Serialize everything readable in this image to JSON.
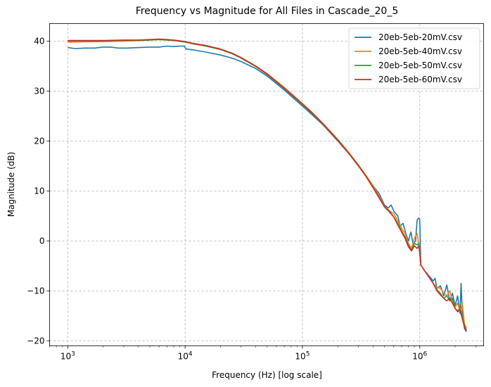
{
  "chart_data": {
    "type": "line",
    "title": "Frequency vs Magnitude for All Files in Cascade_20_5",
    "xlabel": "Frequency (Hz) [log scale]",
    "ylabel": "Magnitude (dB)",
    "xscale": "log",
    "xlim": [
      700,
      3500000
    ],
    "ylim": [
      -21,
      43.5
    ],
    "grid": true,
    "legend_position": "top-right",
    "x_ticks": [
      {
        "value": 1000,
        "base": "10",
        "exp": "3"
      },
      {
        "value": 10000,
        "base": "10",
        "exp": "4"
      },
      {
        "value": 100000,
        "base": "10",
        "exp": "5"
      },
      {
        "value": 1000000,
        "base": "10",
        "exp": "6"
      }
    ],
    "y_ticks": [
      {
        "value": -20,
        "label": "−20"
      },
      {
        "value": -10,
        "label": "−10"
      },
      {
        "value": 0,
        "label": "0"
      },
      {
        "value": 10,
        "label": "10"
      },
      {
        "value": 20,
        "label": "20"
      },
      {
        "value": 30,
        "label": "30"
      },
      {
        "value": 40,
        "label": "40"
      }
    ],
    "series": [
      {
        "name": "20eb-5eb-20mV.csv",
        "color": "#1f77b4",
        "points": [
          [
            1000,
            38.7
          ],
          [
            1150,
            38.5
          ],
          [
            1400,
            38.6
          ],
          [
            1700,
            38.6
          ],
          [
            2000,
            38.8
          ],
          [
            2300,
            38.8
          ],
          [
            2700,
            38.6
          ],
          [
            3200,
            38.6
          ],
          [
            4000,
            38.7
          ],
          [
            5000,
            38.8
          ],
          [
            6000,
            38.8
          ],
          [
            7000,
            39.0
          ],
          [
            8000,
            38.9
          ],
          [
            9000,
            39.0
          ],
          [
            9800,
            39.0
          ],
          [
            10200,
            38.4
          ],
          [
            12000,
            38.2
          ],
          [
            15000,
            37.8
          ],
          [
            20000,
            37.2
          ],
          [
            25000,
            36.6
          ],
          [
            30000,
            35.9
          ],
          [
            40000,
            34.5
          ],
          [
            50000,
            33.0
          ],
          [
            60000,
            31.5
          ],
          [
            70000,
            30.2
          ],
          [
            80000,
            29.0
          ],
          [
            100000,
            27.0
          ],
          [
            120000,
            25.3
          ],
          [
            150000,
            23.2
          ],
          [
            200000,
            20.0
          ],
          [
            250000,
            17.4
          ],
          [
            300000,
            15.0
          ],
          [
            350000,
            13.0
          ],
          [
            400000,
            11.0
          ],
          [
            450000,
            9.5
          ],
          [
            500000,
            7.2
          ],
          [
            540000,
            6.6
          ],
          [
            570000,
            7.2
          ],
          [
            600000,
            6.0
          ],
          [
            650000,
            5.0
          ],
          [
            680000,
            3.0
          ],
          [
            720000,
            3.5
          ],
          [
            760000,
            1.5
          ],
          [
            800000,
            0.0
          ],
          [
            840000,
            1.8
          ],
          [
            880000,
            -0.8
          ],
          [
            920000,
            0.0
          ],
          [
            950000,
            4.2
          ],
          [
            980000,
            4.6
          ],
          [
            1000000,
            4.3
          ],
          [
            1020000,
            -4.8
          ],
          [
            1100000,
            -6.0
          ],
          [
            1200000,
            -7.0
          ],
          [
            1300000,
            -8.0
          ],
          [
            1350000,
            -7.5
          ],
          [
            1400000,
            -9.5
          ],
          [
            1500000,
            -9.0
          ],
          [
            1600000,
            -11.0
          ],
          [
            1700000,
            -8.8
          ],
          [
            1800000,
            -12.0
          ],
          [
            1900000,
            -10.5
          ],
          [
            2000000,
            -13.0
          ],
          [
            2100000,
            -11.0
          ],
          [
            2200000,
            -14.5
          ],
          [
            2250000,
            -8.5
          ],
          [
            2300000,
            -14.0
          ],
          [
            2400000,
            -17.5
          ],
          [
            2500000,
            -18.2
          ]
        ]
      },
      {
        "name": "20eb-5eb-40mV.csv",
        "color": "#ff7f0e",
        "points": [
          [
            1000,
            39.8
          ],
          [
            2000,
            39.9
          ],
          [
            3000,
            40.0
          ],
          [
            4000,
            40.1
          ],
          [
            5000,
            40.2
          ],
          [
            6000,
            40.3
          ],
          [
            7000,
            40.2
          ],
          [
            8000,
            40.1
          ],
          [
            10000,
            39.8
          ],
          [
            12000,
            39.4
          ],
          [
            15000,
            39.0
          ],
          [
            20000,
            38.3
          ],
          [
            25000,
            37.5
          ],
          [
            30000,
            36.7
          ],
          [
            40000,
            35.0
          ],
          [
            50000,
            33.5
          ],
          [
            60000,
            32.0
          ],
          [
            70000,
            30.7
          ],
          [
            80000,
            29.5
          ],
          [
            100000,
            27.5
          ],
          [
            120000,
            25.8
          ],
          [
            150000,
            23.5
          ],
          [
            200000,
            20.3
          ],
          [
            250000,
            17.6
          ],
          [
            300000,
            15.2
          ],
          [
            350000,
            13.0
          ],
          [
            400000,
            11.0
          ],
          [
            450000,
            9.0
          ],
          [
            500000,
            7.0
          ],
          [
            550000,
            6.0
          ],
          [
            600000,
            5.5
          ],
          [
            650000,
            4.0
          ],
          [
            700000,
            2.5
          ],
          [
            750000,
            1.5
          ],
          [
            800000,
            -0.5
          ],
          [
            850000,
            -1.5
          ],
          [
            900000,
            0.5
          ],
          [
            950000,
            1.5
          ],
          [
            980000,
            -0.8
          ],
          [
            1000000,
            -1.5
          ],
          [
            1020000,
            -4.8
          ],
          [
            1100000,
            -6.0
          ],
          [
            1200000,
            -7.2
          ],
          [
            1300000,
            -8.5
          ],
          [
            1400000,
            -9.3
          ],
          [
            1500000,
            -9.5
          ],
          [
            1600000,
            -10.5
          ],
          [
            1700000,
            -11.0
          ],
          [
            1800000,
            -10.0
          ],
          [
            1900000,
            -12.0
          ],
          [
            2000000,
            -13.2
          ],
          [
            2100000,
            -12.5
          ],
          [
            2200000,
            -14.0
          ],
          [
            2300000,
            -12.5
          ],
          [
            2400000,
            -16.5
          ],
          [
            2500000,
            -17.5
          ]
        ]
      },
      {
        "name": "20eb-5eb-50mV.csv",
        "color": "#2ca02c",
        "points": [
          [
            1000,
            40.0
          ],
          [
            2000,
            40.0
          ],
          [
            3000,
            40.1
          ],
          [
            4000,
            40.1
          ],
          [
            5000,
            40.2
          ],
          [
            6000,
            40.3
          ],
          [
            7000,
            40.2
          ],
          [
            8000,
            40.1
          ],
          [
            10000,
            39.8
          ],
          [
            12000,
            39.4
          ],
          [
            15000,
            39.0
          ],
          [
            20000,
            38.3
          ],
          [
            25000,
            37.5
          ],
          [
            30000,
            36.6
          ],
          [
            40000,
            34.9
          ],
          [
            50000,
            33.3
          ],
          [
            60000,
            31.8
          ],
          [
            70000,
            30.5
          ],
          [
            80000,
            29.3
          ],
          [
            100000,
            27.3
          ],
          [
            120000,
            25.6
          ],
          [
            150000,
            23.3
          ],
          [
            200000,
            20.1
          ],
          [
            250000,
            17.4
          ],
          [
            300000,
            15.0
          ],
          [
            350000,
            12.8
          ],
          [
            400000,
            10.6
          ],
          [
            450000,
            8.6
          ],
          [
            500000,
            6.8
          ],
          [
            550000,
            5.8
          ],
          [
            600000,
            4.8
          ],
          [
            650000,
            3.5
          ],
          [
            700000,
            2.0
          ],
          [
            750000,
            0.8
          ],
          [
            800000,
            -0.8
          ],
          [
            850000,
            -1.8
          ],
          [
            900000,
            -0.5
          ],
          [
            950000,
            -0.8
          ],
          [
            980000,
            -0.5
          ],
          [
            1000000,
            -2.0
          ],
          [
            1020000,
            -4.8
          ],
          [
            1100000,
            -6.0
          ],
          [
            1200000,
            -7.2
          ],
          [
            1300000,
            -8.5
          ],
          [
            1400000,
            -9.8
          ],
          [
            1500000,
            -10.5
          ],
          [
            1600000,
            -11.5
          ],
          [
            1700000,
            -11.0
          ],
          [
            1800000,
            -12.0
          ],
          [
            1900000,
            -11.5
          ],
          [
            2000000,
            -13.5
          ],
          [
            2100000,
            -14.0
          ],
          [
            2200000,
            -13.5
          ],
          [
            2300000,
            -15.0
          ],
          [
            2400000,
            -17.0
          ],
          [
            2500000,
            -17.8
          ]
        ]
      },
      {
        "name": "20eb-5eb-60mV.csv",
        "color": "#d62728",
        "points": [
          [
            1000,
            40.1
          ],
          [
            2000,
            40.1
          ],
          [
            3000,
            40.2
          ],
          [
            4000,
            40.2
          ],
          [
            5000,
            40.3
          ],
          [
            6000,
            40.4
          ],
          [
            7000,
            40.3
          ],
          [
            8000,
            40.2
          ],
          [
            10000,
            39.9
          ],
          [
            12000,
            39.5
          ],
          [
            15000,
            39.1
          ],
          [
            20000,
            38.4
          ],
          [
            25000,
            37.6
          ],
          [
            30000,
            36.7
          ],
          [
            40000,
            35.0
          ],
          [
            50000,
            33.4
          ],
          [
            60000,
            31.9
          ],
          [
            70000,
            30.6
          ],
          [
            80000,
            29.4
          ],
          [
            100000,
            27.4
          ],
          [
            120000,
            25.7
          ],
          [
            150000,
            23.4
          ],
          [
            200000,
            20.2
          ],
          [
            250000,
            17.5
          ],
          [
            300000,
            15.1
          ],
          [
            350000,
            12.9
          ],
          [
            400000,
            10.7
          ],
          [
            450000,
            8.7
          ],
          [
            500000,
            6.9
          ],
          [
            550000,
            6.0
          ],
          [
            600000,
            4.8
          ],
          [
            650000,
            3.2
          ],
          [
            700000,
            1.8
          ],
          [
            750000,
            0.5
          ],
          [
            800000,
            -1.2
          ],
          [
            850000,
            -2.0
          ],
          [
            900000,
            -1.0
          ],
          [
            950000,
            -1.5
          ],
          [
            980000,
            -1.0
          ],
          [
            1000000,
            -2.5
          ],
          [
            1020000,
            -4.8
          ],
          [
            1100000,
            -6.0
          ],
          [
            1200000,
            -7.3
          ],
          [
            1300000,
            -8.5
          ],
          [
            1400000,
            -10.0
          ],
          [
            1500000,
            -10.8
          ],
          [
            1600000,
            -11.5
          ],
          [
            1700000,
            -12.0
          ],
          [
            1800000,
            -11.5
          ],
          [
            1900000,
            -12.5
          ],
          [
            2000000,
            -13.5
          ],
          [
            2100000,
            -14.2
          ],
          [
            2200000,
            -13.8
          ],
          [
            2300000,
            -15.5
          ],
          [
            2400000,
            -17.2
          ],
          [
            2500000,
            -18.0
          ]
        ]
      }
    ]
  }
}
